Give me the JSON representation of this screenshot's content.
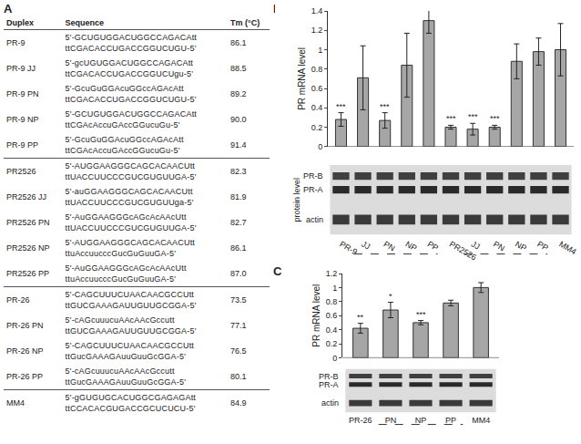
{
  "panel_labels": [
    "A",
    "B",
    "C"
  ],
  "table": {
    "header": [
      "Duplex",
      "Sequence",
      "Tm (°C)"
    ],
    "groups": [
      [
        {
          "duplex": "PR-9",
          "sequence": [
            "5'-GCUGUGGACUGGCCAGACAtt",
            "ttCGACACCUGACCGGUCUGU-5'"
          ],
          "tm": "86.1"
        },
        {
          "duplex": "PR-9 JJ",
          "sequence": [
            "5'-gcUGUGGACUGGCCAGACAtt",
            "ttCGACACCUGACCGGUCUgu-5'"
          ],
          "tm": "88.5"
        },
        {
          "duplex": "PR-9 PN",
          "sequence": [
            "5'-GcuGuGGAcuGGccAGAcAtt",
            "ttCGACACCUGACCGGUCUGU-5'"
          ],
          "tm": "89.2"
        },
        {
          "duplex": "PR-9 NP",
          "sequence": [
            "5'-GCUGUGGACUGGCCAGACAtt",
            "ttCGAcAccuGAccGGucuGu-5'"
          ],
          "tm": "90.0"
        },
        {
          "duplex": "PR-9 PP",
          "sequence": [
            "5'-GcuGuGGAcuGGccAGAcAtt",
            "ttCGAcAccuGAccGGucuGu-5'"
          ],
          "tm": "91.4"
        }
      ],
      [
        {
          "duplex": "PR2526",
          "sequence": [
            "5'-AUGGAAGGGCAGCACAACUtt",
            "ttUACCUUCCCGUCGUGUUGA-5'"
          ],
          "tm": "82.3"
        },
        {
          "duplex": "PR2526 JJ",
          "sequence": [
            "5'-auGGAAGGGCAGCACAACUtt",
            "ttUACCUUCCCGUCGUGUUga-5'"
          ],
          "tm": "81.9"
        },
        {
          "duplex": "PR2526 PN",
          "sequence": [
            "5'-AuGGAAGGGcAGcAcAAcUtt",
            "ttUACCUUCCCGUCGUGUUGA-5'"
          ],
          "tm": "82.7"
        },
        {
          "duplex": "PR2526 NP",
          "sequence": [
            "5'-AUGGAAGGGCAGCACAACUtt",
            "ttuAccuucccGucGuGuuGA-5'"
          ],
          "tm": "86.1"
        },
        {
          "duplex": "PR2526 PP",
          "sequence": [
            "5'-AuGGAAGGGcAGcAcAAcUtt",
            "ttuAccuucccGucGuGuuGA-5'"
          ],
          "tm": "87.0"
        }
      ],
      [
        {
          "duplex": "PR-26",
          "sequence": [
            "5'-CAGCUUUCUAACAACGCCUtt",
            "ttGUCGAAAGAUUGUUGCGGA-5'"
          ],
          "tm": "73.5"
        },
        {
          "duplex": "PR-26 PN",
          "sequence": [
            "5'-cAGcuuucuAAcAAcGccutt",
            "ttGUCGAAAGAUUGUUGCGGA-5'"
          ],
          "tm": "77.1"
        },
        {
          "duplex": "PR-26 NP",
          "sequence": [
            "5'-CAGCUUUCUAACAACGCCUtt",
            "ttGucGAAAGAuuGuuGcGGA-5'"
          ],
          "tm": "76.5"
        },
        {
          "duplex": "PR-26 PP",
          "sequence": [
            "5'-cAGcuuucuAAcAAcGccutt",
            "ttGucGAAAGAuuGuuGcGGA-5'"
          ],
          "tm": "80.1"
        }
      ],
      [
        {
          "duplex": "MM4",
          "sequence": [
            "5'-gGUGUGCACUGGCGAGAGAtt",
            "ttCCACACGUGACCGCUCUCU-5'"
          ],
          "tm": "84.9"
        }
      ]
    ]
  },
  "chart_data": [
    {
      "type": "bar",
      "ylabel": "PR mRNA level",
      "categories": [
        "PR-9",
        "JJ",
        "PN",
        "NP",
        "PP",
        "PR2526",
        "JJ",
        "PN",
        "NP",
        "PP",
        "MM4"
      ],
      "values": [
        0.28,
        0.71,
        0.27,
        0.84,
        1.3,
        0.2,
        0.18,
        0.2,
        0.88,
        0.98,
        1.0
      ],
      "errors": [
        0.07,
        0.33,
        0.08,
        0.33,
        0.13,
        0.02,
        0.06,
        0.02,
        0.18,
        0.14,
        0.27
      ],
      "significance": [
        "***",
        null,
        "***",
        null,
        null,
        "***",
        "***",
        "***",
        null,
        null,
        null
      ],
      "color": "#a6a6a6",
      "ylim": [
        0,
        1.4
      ],
      "yticks": [
        0,
        0.2,
        0.4,
        0.6,
        0.8,
        1,
        1.2,
        1.4
      ],
      "blot_title": "protein level",
      "blot_labels": [
        "PR-B",
        "PR-A",
        "actin"
      ]
    },
    {
      "type": "bar",
      "ylabel": "PR mRNA level",
      "categories": [
        "PR-26",
        "PN",
        "NP",
        "PP",
        "MM4"
      ],
      "values": [
        0.42,
        0.68,
        0.5,
        0.78,
        1.0
      ],
      "errors": [
        0.07,
        0.11,
        0.03,
        0.04,
        0.07
      ],
      "significance": [
        "**",
        "*",
        "***",
        null,
        null
      ],
      "color": "#a6a6a6",
      "ylim": [
        0,
        1.2
      ],
      "yticks": [
        0,
        0.2,
        0.4,
        0.6,
        0.8,
        1,
        1.2
      ],
      "blot_labels": [
        "PR-B",
        "PR-A",
        "actin"
      ]
    }
  ]
}
